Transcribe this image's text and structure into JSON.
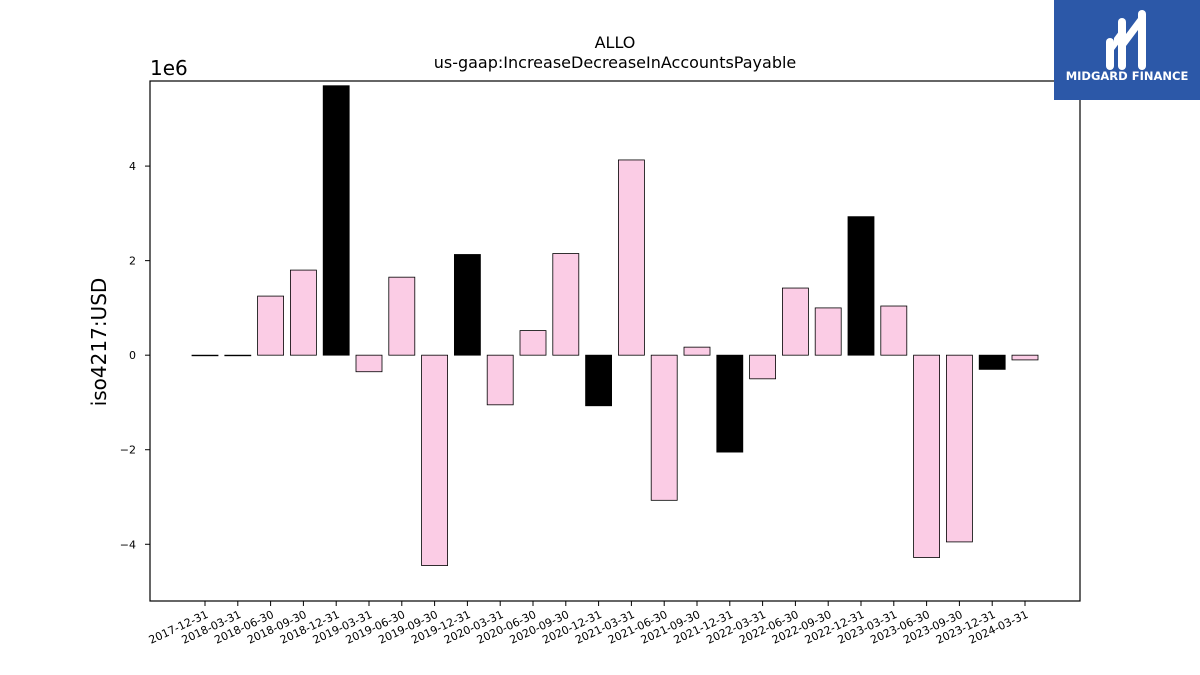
{
  "chart_data": {
    "type": "bar",
    "title": "ALLO",
    "subtitle": "us-gaap:IncreaseDecreaseInAccountsPayable",
    "ylabel": "iso4217:USD",
    "xlabel": "",
    "y_offset_label": "1e6",
    "ylim": [
      -5.2,
      5.8
    ],
    "y_ticks": [
      -4,
      -2,
      0,
      2,
      4
    ],
    "y_tick_labels": [
      "−4",
      "−2",
      "0",
      "2",
      "4"
    ],
    "grid": false,
    "categories": [
      "2017-12-31",
      "2018-03-31",
      "2018-06-30",
      "2018-09-30",
      "2018-12-31",
      "2019-03-31",
      "2019-06-30",
      "2019-09-30",
      "2019-12-31",
      "2020-03-31",
      "2020-06-30",
      "2020-09-30",
      "2020-12-31",
      "2021-03-31",
      "2021-06-30",
      "2021-09-30",
      "2021-12-31",
      "2022-03-31",
      "2022-06-30",
      "2022-09-30",
      "2022-12-31",
      "2023-03-31",
      "2023-06-30",
      "2023-09-30",
      "2023-12-31",
      "2024-03-31"
    ],
    "values": [
      0,
      0,
      1.25,
      1.8,
      5.7,
      -0.35,
      1.65,
      -4.45,
      2.13,
      -1.05,
      0.52,
      2.15,
      -1.07,
      4.13,
      -3.07,
      0.17,
      -2.05,
      -0.5,
      1.42,
      1.0,
      2.93,
      1.04,
      -4.28,
      -3.95,
      -0.3,
      -0.1
    ],
    "highlight": [
      false,
      false,
      false,
      false,
      true,
      false,
      false,
      false,
      true,
      false,
      false,
      false,
      true,
      false,
      false,
      false,
      true,
      false,
      false,
      false,
      true,
      false,
      false,
      false,
      true,
      false
    ],
    "colors": {
      "normal": "#fbcce5",
      "highlight": "#000000",
      "edge": "#000000"
    }
  },
  "logo": {
    "text": "MIDGARD FINANCE",
    "bg_color": "#2c58a8",
    "fg_color": "#ffffff"
  }
}
